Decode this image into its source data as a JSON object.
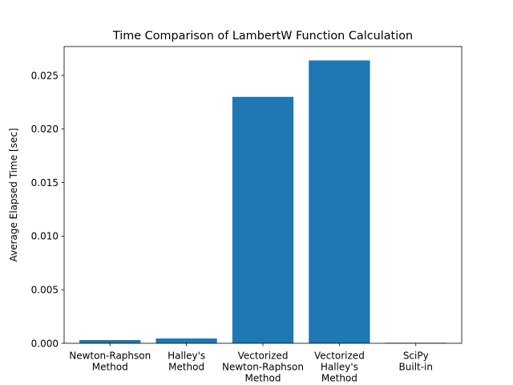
{
  "chart_data": {
    "type": "bar",
    "title": "Time Comparison of LambertW Function Calculation",
    "xlabel": "",
    "ylabel": "Average Elapsed Time [sec]",
    "categories": [
      "Newton-Raphson\nMethod",
      "Halley's\nMethod",
      "Vectorized\nNewton-Raphson\nMethod",
      "Vectorized\nHalley's\nMethod",
      "SciPy\nBuilt-in"
    ],
    "values": [
      0.0003,
      0.00045,
      0.023,
      0.0264,
      5e-05
    ],
    "ylim": [
      0,
      0.0277
    ],
    "yticks": [
      "0.000",
      "0.005",
      "0.010",
      "0.015",
      "0.020",
      "0.025"
    ],
    "ytick_values": [
      0,
      0.005,
      0.01,
      0.015,
      0.02,
      0.025
    ],
    "bar_color": "#1f77b4",
    "grid": false,
    "legend": "none"
  }
}
